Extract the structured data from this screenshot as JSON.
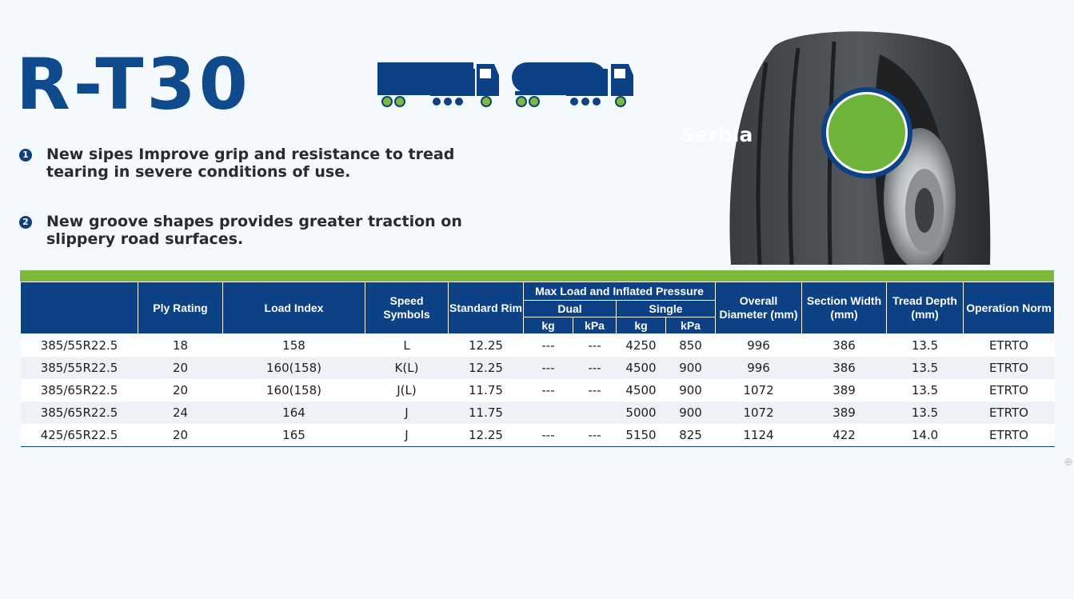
{
  "product": {
    "name": "R-T30"
  },
  "icons": [
    "box-truck-trailer-icon",
    "tanker-truck-trailer-icon"
  ],
  "features": [
    {
      "number": "1",
      "text": "New sipes Improve grip and resistance to tread tearing in severe conditions of use."
    },
    {
      "number": "2",
      "text": "New groove shapes provides greater traction on slippery road surfaces."
    }
  ],
  "badge": {
    "text": "Serbia"
  },
  "colors": {
    "brand_blue": "#0f4a8c",
    "header_blue": "#0d4185",
    "accent_green": "#7cb83a"
  },
  "table": {
    "headers": {
      "size": "",
      "ply_rating": "Ply Rating",
      "load_index": "Load Index",
      "speed_symbols": "Speed Symbols",
      "standard_rim": "Standard Rim",
      "max_load": "Max Load and Inflated Pressure",
      "dual": "Dual",
      "single": "Single",
      "kg": "kg",
      "kpa": "kPa",
      "overall_diameter": "Overall Diameter (mm)",
      "section_width": "Section Width (mm)",
      "tread_depth": "Tread Depth (mm)",
      "operation_norm": "Operation Norm"
    },
    "rows": [
      [
        "385/55R22.5",
        "18",
        "158",
        "L",
        "12.25",
        "---",
        "---",
        "4250",
        "850",
        "996",
        "386",
        "13.5",
        "ETRTO"
      ],
      [
        "385/55R22.5",
        "20",
        "160(158)",
        "K(L)",
        "12.25",
        "---",
        "---",
        "4500",
        "900",
        "996",
        "386",
        "13.5",
        "ETRTO"
      ],
      [
        "385/65R22.5",
        "20",
        "160(158)",
        "J(L)",
        "11.75",
        "---",
        "---",
        "4500",
        "900",
        "1072",
        "389",
        "13.5",
        "ETRTO"
      ],
      [
        "385/65R22.5",
        "24",
        "164",
        "J",
        "11.75",
        "",
        "",
        "5000",
        "900",
        "1072",
        "389",
        "13.5",
        "ETRTO"
      ],
      [
        "425/65R22.5",
        "20",
        "165",
        "J",
        "12.25",
        "---",
        "---",
        "5150",
        "825",
        "1124",
        "422",
        "14.0",
        "ETRTO"
      ]
    ]
  }
}
